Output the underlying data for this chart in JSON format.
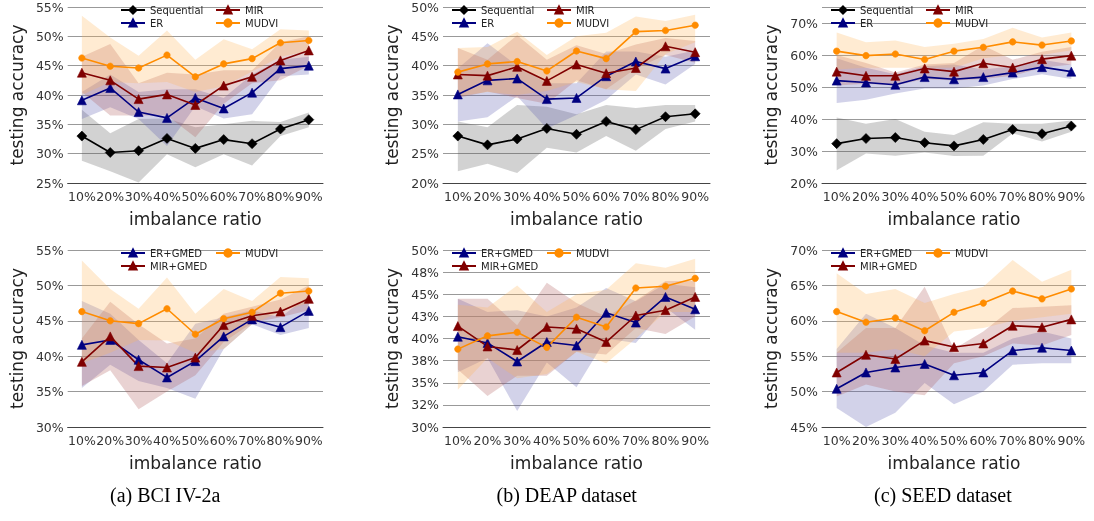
{
  "chart_data": [
    {
      "type": "line",
      "xlabel": "imbalance ratio",
      "ylabel": "testing accuracy",
      "categories": [
        "10%",
        "20%",
        "30%",
        "40%",
        "50%",
        "60%",
        "70%",
        "80%",
        "90%"
      ],
      "ylim": [
        25,
        55
      ],
      "yticks": [
        {
          "value": 25,
          "label": "25%"
        },
        {
          "value": 30,
          "label": "30%"
        },
        {
          "value": 35,
          "label": "35%"
        },
        {
          "value": 40,
          "label": "40%"
        },
        {
          "value": 45,
          "label": "45%"
        },
        {
          "value": 50,
          "label": "50%"
        },
        {
          "value": 55,
          "label": "55%"
        }
      ],
      "grid": "y",
      "legend": "top",
      "series": [
        {
          "name": "Sequential",
          "color": "#000000",
          "marker": "diamond",
          "values": [
            33.0,
            30.2,
            30.5,
            32.6,
            30.9,
            32.4,
            31.7,
            34.2,
            35.8
          ],
          "lower": [
            28.8,
            27.0,
            25.1,
            29.9,
            27.7,
            29.9,
            28.0,
            33.0,
            34.5
          ],
          "upper": [
            37.5,
            33.5,
            35.9,
            36.0,
            34.5,
            35.0,
            35.6,
            35.4,
            37.0
          ]
        },
        {
          "name": "ER",
          "color": "#000080",
          "marker": "triangle",
          "values": [
            39.1,
            41.2,
            37.1,
            36.1,
            39.5,
            37.7,
            40.4,
            44.5,
            45.0
          ],
          "lower": [
            35.9,
            37.9,
            35.9,
            31.3,
            38.1,
            36.0,
            36.7,
            43.2,
            43.5
          ],
          "upper": [
            40.5,
            43.5,
            40.5,
            41.0,
            41.0,
            39.5,
            43.5,
            46.0,
            46.5
          ]
        },
        {
          "name": "MIR",
          "color": "#800000",
          "marker": "triangle",
          "values": [
            43.8,
            42.5,
            39.3,
            40.1,
            38.3,
            41.6,
            43.1,
            45.9,
            47.6
          ],
          "lower": [
            40.5,
            36.5,
            36.5,
            36.5,
            32.8,
            38.5,
            42.0,
            42.5,
            45.0
          ],
          "upper": [
            46.5,
            48.7,
            42.0,
            43.8,
            43.5,
            44.2,
            44.2,
            49.0,
            50.0
          ]
        },
        {
          "name": "MUDVI",
          "color": "#ff8c00",
          "marker": "circle",
          "values": [
            46.3,
            44.9,
            44.6,
            46.8,
            43.1,
            45.3,
            46.2,
            48.9,
            49.3
          ],
          "lower": [
            40.0,
            42.2,
            42.0,
            42.2,
            40.5,
            41.5,
            44.0,
            46.5,
            47.5
          ],
          "upper": [
            53.5,
            49.8,
            46.7,
            51.0,
            46.0,
            49.5,
            47.8,
            51.2,
            51.0
          ]
        }
      ]
    },
    {
      "type": "line",
      "xlabel": "imbalance ratio",
      "ylabel": "testing accuracy",
      "categories": [
        "10%",
        "20%",
        "30%",
        "40%",
        "50%",
        "60%",
        "70%",
        "80%",
        "90%"
      ],
      "ylim": [
        20,
        50
      ],
      "yticks": [
        {
          "value": 20,
          "label": "20%"
        },
        {
          "value": 25,
          "label": "25%"
        },
        {
          "value": 30,
          "label": "30%"
        },
        {
          "value": 35,
          "label": "35%"
        },
        {
          "value": 40,
          "label": "40%"
        },
        {
          "value": 45,
          "label": "45%"
        },
        {
          "value": 50,
          "label": "50%"
        }
      ],
      "grid": "y",
      "legend": "top",
      "series": [
        {
          "name": "Sequential",
          "color": "#000000",
          "marker": "diamond",
          "values": [
            28.0,
            26.5,
            27.5,
            29.3,
            28.3,
            30.5,
            29.1,
            31.3,
            31.8
          ],
          "lower": [
            22.0,
            23.3,
            21.7,
            26.0,
            25.2,
            28.0,
            25.5,
            29.2,
            30.5
          ],
          "upper": [
            30.5,
            29.5,
            33.3,
            33.0,
            31.7,
            33.3,
            32.8,
            33.3,
            33.3
          ]
        },
        {
          "name": "ER",
          "color": "#000080",
          "marker": "triangle",
          "values": [
            35.1,
            37.5,
            37.8,
            34.3,
            34.5,
            38.2,
            40.7,
            39.5,
            41.6
          ],
          "lower": [
            30.5,
            31.2,
            34.8,
            29.3,
            31.6,
            34.2,
            38.5,
            36.8,
            40.3
          ],
          "upper": [
            39.5,
            43.8,
            40.0,
            37.0,
            37.0,
            42.4,
            42.4,
            41.5,
            42.6
          ]
        },
        {
          "name": "MIR",
          "color": "#800000",
          "marker": "triangle",
          "values": [
            38.5,
            38.3,
            39.8,
            37.4,
            40.2,
            38.7,
            39.6,
            43.3,
            42.3
          ],
          "lower": [
            34.5,
            35.6,
            34.5,
            33.5,
            37.5,
            36.0,
            39.5,
            41.8,
            40.5
          ],
          "upper": [
            43.0,
            41.0,
            45.2,
            41.0,
            43.5,
            42.0,
            43.6,
            44.7,
            44.2
          ]
        },
        {
          "name": "MUDVI",
          "color": "#ff8c00",
          "marker": "circle",
          "values": [
            38.9,
            40.3,
            40.7,
            39.1,
            42.5,
            41.2,
            45.8,
            46.0,
            46.9
          ],
          "lower": [
            34.8,
            35.5,
            35.0,
            35.7,
            37.2,
            36.0,
            35.7,
            42.0,
            44.0
          ],
          "upper": [
            43.0,
            43.2,
            45.8,
            41.8,
            45.0,
            45.6,
            48.4,
            47.6,
            48.7
          ]
        }
      ]
    },
    {
      "type": "line",
      "xlabel": "imbalance ratio",
      "ylabel": "testing accuracy",
      "categories": [
        "10%",
        "20%",
        "30%",
        "40%",
        "50%",
        "60%",
        "70%",
        "80%",
        "90%"
      ],
      "ylim": [
        20,
        75
      ],
      "yticks": [
        {
          "value": 20,
          "label": "20%"
        },
        {
          "value": 30,
          "label": "30%"
        },
        {
          "value": 40,
          "label": "40%"
        },
        {
          "value": 50,
          "label": "50%"
        },
        {
          "value": 60,
          "label": "60%"
        },
        {
          "value": 70,
          "label": "70%"
        },
        {
          "value": 75,
          "label": null
        }
      ],
      "grid": "y",
      "legend": "top",
      "series": [
        {
          "name": "Sequential",
          "color": "#000000",
          "marker": "diamond",
          "values": [
            32.3,
            33.9,
            34.2,
            32.6,
            31.6,
            33.6,
            36.7,
            35.4,
            37.8
          ],
          "lower": [
            24.0,
            29.2,
            28.5,
            29.5,
            28.4,
            28.5,
            35.5,
            33.0,
            36.0
          ],
          "upper": [
            40.5,
            38.5,
            40.0,
            36.0,
            35.0,
            39.0,
            38.5,
            38.5,
            39.5
          ]
        },
        {
          "name": "ER",
          "color": "#000080",
          "marker": "triangle",
          "values": [
            52.0,
            51.4,
            50.7,
            53.1,
            52.4,
            53.1,
            54.5,
            56.2,
            54.8
          ],
          "lower": [
            45.0,
            46.0,
            48.0,
            49.5,
            49.5,
            50.5,
            52.5,
            54.0,
            52.5
          ],
          "upper": [
            59.0,
            56.0,
            54.0,
            56.5,
            57.0,
            55.5,
            56.5,
            58.5,
            57.0
          ]
        },
        {
          "name": "MIR",
          "color": "#800000",
          "marker": "triangle",
          "values": [
            54.8,
            53.5,
            53.5,
            55.8,
            54.8,
            57.4,
            56.1,
            58.7,
            59.8
          ],
          "lower": [
            50.5,
            51.0,
            50.5,
            52.5,
            52.0,
            52.5,
            53.5,
            56.0,
            57.0
          ],
          "upper": [
            60.0,
            57.5,
            54.5,
            57.0,
            57.5,
            63.0,
            58.5,
            61.0,
            62.5
          ]
        },
        {
          "name": "MUDVI",
          "color": "#ff8c00",
          "marker": "circle",
          "values": [
            61.2,
            59.8,
            60.3,
            58.6,
            61.2,
            62.4,
            64.1,
            63.1,
            64.4
          ],
          "lower": [
            55.5,
            56.0,
            56.0,
            56.0,
            56.0,
            59.0,
            60.0,
            60.0,
            61.5
          ],
          "upper": [
            67.0,
            64.0,
            64.5,
            62.5,
            63.5,
            65.0,
            68.5,
            65.5,
            67.0
          ]
        }
      ]
    },
    {
      "type": "line",
      "xlabel": "imbalance ratio",
      "ylabel": "testing accuracy",
      "annotations": [
        "(a) BCI IV-2a"
      ],
      "categories": [
        "10%",
        "20%",
        "30%",
        "40%",
        "50%",
        "60%",
        "70%",
        "80%",
        "90%"
      ],
      "ylim": [
        30,
        55
      ],
      "yticks": [
        {
          "value": 30,
          "label": "30%"
        },
        {
          "value": 35,
          "label": "35%"
        },
        {
          "value": 40,
          "label": "40%"
        },
        {
          "value": 45,
          "label": "45%"
        },
        {
          "value": 50,
          "label": "50%"
        },
        {
          "value": 55,
          "label": "55%"
        }
      ],
      "grid": "y",
      "legend": "top",
      "series": [
        {
          "name": "ER+GMED",
          "color": "#000080",
          "marker": "triangle",
          "values": [
            41.6,
            42.3,
            39.5,
            37.0,
            39.3,
            42.8,
            45.2,
            44.1,
            46.4
          ],
          "lower": [
            35.5,
            38.8,
            36.5,
            35.5,
            34.0,
            41.0,
            44.5,
            43.0,
            44.0
          ],
          "upper": [
            47.8,
            46.0,
            42.3,
            39.0,
            44.6,
            45.5,
            46.5,
            45.5,
            48.5
          ]
        },
        {
          "name": "MIR+GMED",
          "color": "#800000",
          "marker": "triangle",
          "values": [
            39.2,
            42.8,
            38.6,
            38.4,
            39.8,
            44.4,
            45.7,
            46.3,
            48.1
          ],
          "lower": [
            35.8,
            38.0,
            32.5,
            35.0,
            37.3,
            42.0,
            44.7,
            45.5,
            46.5
          ],
          "upper": [
            42.5,
            47.7,
            44.5,
            41.8,
            42.5,
            46.0,
            47.0,
            48.0,
            50.0
          ]
        },
        {
          "name": "MUDVI",
          "color": "#ff8c00",
          "marker": "circle",
          "values": [
            46.3,
            45.0,
            44.6,
            46.7,
            43.1,
            45.3,
            46.2,
            48.9,
            49.2
          ],
          "lower": [
            39.0,
            40.5,
            42.3,
            42.2,
            40.5,
            41.0,
            44.5,
            46.3,
            47.5
          ],
          "upper": [
            53.5,
            49.5,
            46.7,
            51.1,
            46.0,
            49.5,
            47.8,
            51.2,
            51.0
          ]
        }
      ]
    },
    {
      "type": "line",
      "xlabel": "imbalance ratio",
      "ylabel": "testing accuracy",
      "annotations": [
        "(b) DEAP dataset"
      ],
      "categories": [
        "10%",
        "20%",
        "30%",
        "40%",
        "50%",
        "60%",
        "70%",
        "80%",
        "90%"
      ],
      "ylim": [
        30,
        50
      ],
      "yticks": [
        {
          "value": 30,
          "label": "30%"
        },
        {
          "value": 32.5,
          "label": "32%"
        },
        {
          "value": 35,
          "label": "35%"
        },
        {
          "value": 37.5,
          "label": "38%"
        },
        {
          "value": 40,
          "label": "40%"
        },
        {
          "value": 42.5,
          "label": "43%"
        },
        {
          "value": 45,
          "label": "45%"
        },
        {
          "value": 47.5,
          "label": "48%"
        },
        {
          "value": 50,
          "label": "50%"
        }
      ],
      "grid": "y",
      "legend": "top",
      "series": [
        {
          "name": "ER+GMED",
          "color": "#000080",
          "marker": "triangle",
          "values": [
            40.2,
            39.5,
            37.4,
            39.6,
            39.2,
            42.9,
            41.8,
            44.7,
            43.3
          ],
          "lower": [
            36.2,
            37.8,
            31.8,
            37.3,
            34.5,
            40.0,
            39.5,
            43.5,
            41.0
          ],
          "upper": [
            44.5,
            43.0,
            43.2,
            42.5,
            43.5,
            45.7,
            44.2,
            46.2,
            45.8
          ]
        },
        {
          "name": "MIR+GMED",
          "color": "#800000",
          "marker": "triangle",
          "values": [
            41.4,
            39.1,
            38.7,
            41.3,
            41.1,
            39.6,
            42.6,
            43.2,
            44.7
          ],
          "lower": [
            36.5,
            33.5,
            35.8,
            35.8,
            38.5,
            38.2,
            41.2,
            40.5,
            42.5
          ],
          "upper": [
            44.5,
            44.5,
            41.5,
            46.3,
            44.0,
            42.5,
            44.3,
            46.5,
            46.5
          ]
        },
        {
          "name": "MUDVI",
          "color": "#ff8c00",
          "marker": "circle",
          "values": [
            38.8,
            40.3,
            40.7,
            39.0,
            42.4,
            41.3,
            45.7,
            45.9,
            46.8
          ],
          "lower": [
            34.2,
            37.8,
            35.5,
            36.0,
            38.5,
            37.2,
            40.0,
            43.0,
            43.0
          ],
          "upper": [
            43.8,
            43.5,
            46.0,
            43.0,
            45.0,
            45.5,
            48.5,
            48.0,
            49.0
          ]
        }
      ]
    },
    {
      "type": "line",
      "xlabel": "imbalance ratio",
      "ylabel": "testing accuracy",
      "annotations": [
        "(c) SEED dataset"
      ],
      "categories": [
        "10%",
        "20%",
        "30%",
        "40%",
        "50%",
        "60%",
        "70%",
        "80%",
        "90%"
      ],
      "ylim": [
        45,
        70
      ],
      "yticks": [
        {
          "value": 45,
          "label": "45%"
        },
        {
          "value": 50,
          "label": "50%"
        },
        {
          "value": 55,
          "label": "55%"
        },
        {
          "value": 60,
          "label": "60%"
        },
        {
          "value": 65,
          "label": "65%"
        },
        {
          "value": 70,
          "label": "70%"
        }
      ],
      "grid": "y",
      "legend": "top",
      "series": [
        {
          "name": "ER+GMED",
          "color": "#000080",
          "marker": "triangle",
          "values": [
            50.4,
            52.7,
            53.4,
            53.9,
            52.3,
            52.7,
            55.8,
            56.2,
            55.8
          ],
          "lower": [
            47.7,
            45.0,
            47.0,
            51.2,
            48.2,
            50.0,
            53.8,
            54.0,
            54.0
          ],
          "upper": [
            56.0,
            61.0,
            59.0,
            56.5,
            55.5,
            55.5,
            57.5,
            58.5,
            57.5
          ]
        },
        {
          "name": "MIR+GMED",
          "color": "#800000",
          "marker": "triangle",
          "values": [
            52.7,
            55.2,
            54.6,
            57.2,
            56.3,
            56.8,
            59.3,
            59.1,
            60.2
          ],
          "lower": [
            49.3,
            51.0,
            50.0,
            49.5,
            54.0,
            55.0,
            56.8,
            56.5,
            58.0
          ],
          "upper": [
            55.5,
            59.0,
            59.0,
            64.8,
            56.0,
            58.5,
            61.8,
            62.0,
            62.2
          ]
        },
        {
          "name": "MUDVI",
          "color": "#ff8c00",
          "marker": "circle",
          "values": [
            61.3,
            59.8,
            60.4,
            58.6,
            61.2,
            62.5,
            64.2,
            63.1,
            64.5
          ],
          "lower": [
            55.5,
            55.5,
            56.0,
            55.0,
            58.5,
            59.0,
            60.0,
            60.5,
            61.0
          ],
          "upper": [
            66.7,
            63.8,
            64.5,
            62.5,
            63.8,
            64.8,
            68.6,
            65.5,
            67.2
          ]
        }
      ]
    }
  ]
}
